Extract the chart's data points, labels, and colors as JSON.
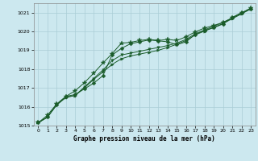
{
  "xlabel": "Graphe pression niveau de la mer (hPa)",
  "bg_color": "#cce8ef",
  "grid_color": "#aacdd6",
  "line_color": "#1a5c2a",
  "xlim": [
    -0.5,
    23.5
  ],
  "ylim": [
    1015.0,
    1021.5
  ],
  "yticks": [
    1015,
    1016,
    1017,
    1018,
    1019,
    1020,
    1021
  ],
  "xticks": [
    0,
    1,
    2,
    3,
    4,
    5,
    6,
    7,
    8,
    9,
    10,
    11,
    12,
    13,
    14,
    15,
    16,
    17,
    18,
    19,
    20,
    21,
    22,
    23
  ],
  "series": [
    [
      1015.15,
      1015.45,
      1016.1,
      1016.55,
      1016.65,
      1016.95,
      1017.25,
      1017.65,
      1018.75,
      1019.1,
      1019.35,
      1019.45,
      1019.55,
      1019.5,
      1019.45,
      1019.3,
      1019.45,
      1019.85,
      1020.05,
      1020.2,
      1020.4,
      1020.75,
      1021.0,
      1021.2
    ],
    [
      1015.15,
      1015.45,
      1016.1,
      1016.5,
      1016.6,
      1017.05,
      1017.5,
      1017.95,
      1018.45,
      1018.75,
      1018.85,
      1018.95,
      1019.05,
      1019.15,
      1019.25,
      1019.38,
      1019.58,
      1019.88,
      1020.08,
      1020.28,
      1020.48,
      1020.72,
      1020.97,
      1021.2
    ],
    [
      1015.15,
      1015.45,
      1016.1,
      1016.5,
      1016.6,
      1017.0,
      1017.45,
      1017.85,
      1018.25,
      1018.55,
      1018.7,
      1018.8,
      1018.9,
      1019.0,
      1019.15,
      1019.32,
      1019.52,
      1019.82,
      1020.02,
      1020.22,
      1020.42,
      1020.68,
      1020.93,
      1021.2
    ],
    [
      1015.15,
      1015.55,
      1016.15,
      1016.55,
      1016.85,
      1017.28,
      1017.78,
      1018.32,
      1018.82,
      1019.38,
      1019.42,
      1019.52,
      1019.58,
      1019.52,
      1019.58,
      1019.52,
      1019.72,
      1019.98,
      1020.18,
      1020.32,
      1020.48,
      1020.72,
      1020.98,
      1021.25
    ]
  ],
  "markers": [
    "D",
    "v",
    ">",
    "*"
  ],
  "markersizes": [
    2.5,
    2.5,
    2.5,
    4.0
  ]
}
